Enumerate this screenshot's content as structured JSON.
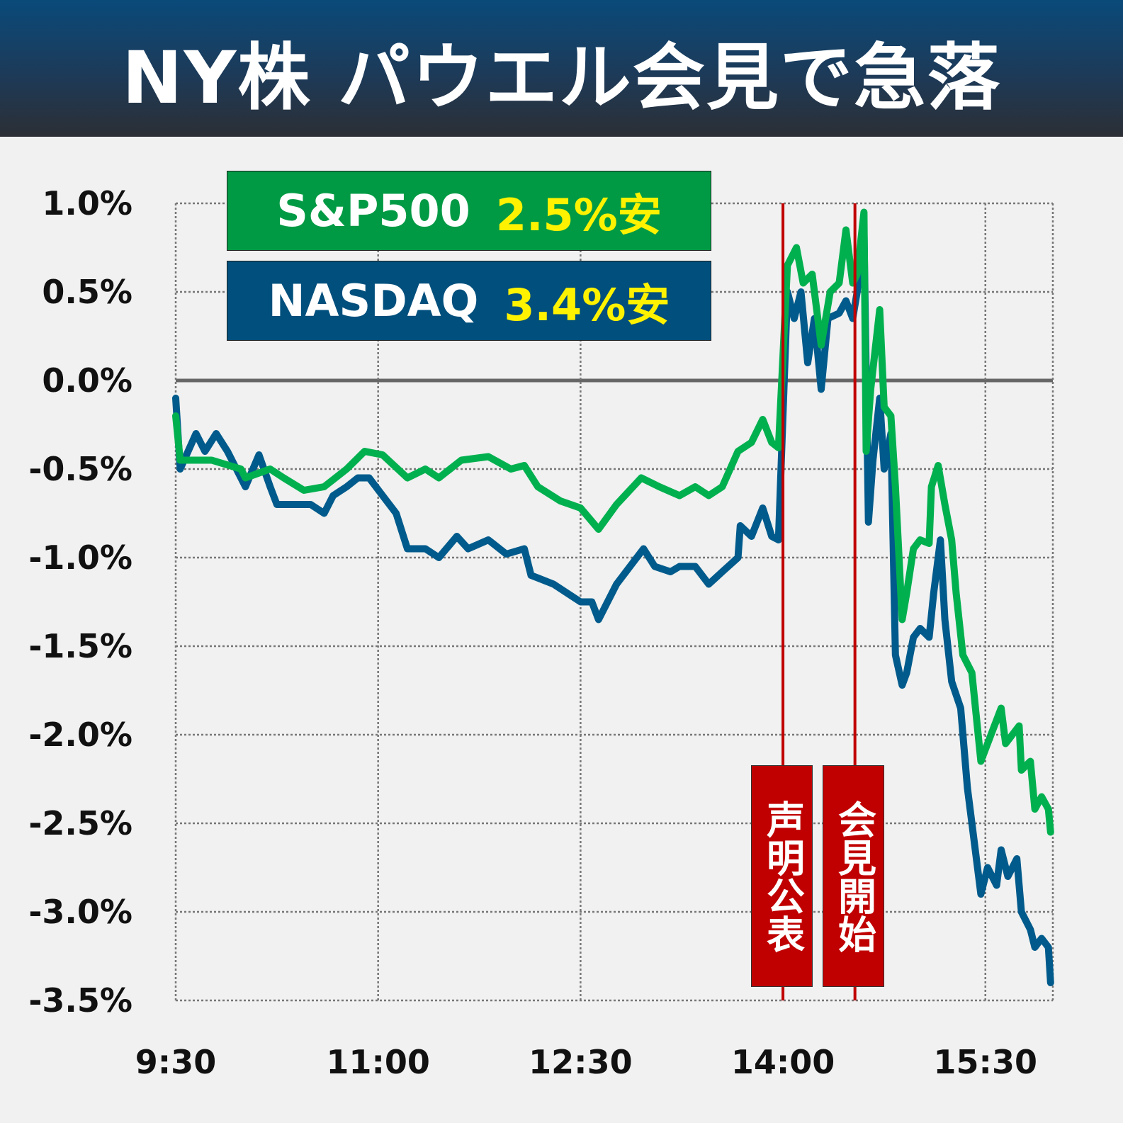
{
  "header": {
    "title": "NY株 パウエル会見で急落"
  },
  "legend": [
    {
      "name": "S&P500",
      "change": "2.5%安",
      "color": "#009a44"
    },
    {
      "name": "NASDAQ",
      "change": "3.4%安",
      "color": "#004f7c"
    }
  ],
  "events": [
    {
      "label": "声明公表",
      "minute": 270
    },
    {
      "label": "会見開始",
      "minute": 302
    }
  ],
  "chart_data": {
    "type": "line",
    "title": "NY株 パウエル会見で急落",
    "xlabel": "",
    "ylabel": "",
    "x_unit": "minutes since 9:30",
    "xlim": [
      0,
      390
    ],
    "ylim": [
      -3.5,
      1.0
    ],
    "grid": true,
    "x_ticks": [
      {
        "minute": 0,
        "label": "9:30"
      },
      {
        "minute": 90,
        "label": "11:00"
      },
      {
        "minute": 180,
        "label": "12:30"
      },
      {
        "minute": 270,
        "label": "14:00"
      },
      {
        "minute": 360,
        "label": "15:30"
      }
    ],
    "y_ticks": [
      {
        "value": 1.0,
        "label": "1.0%"
      },
      {
        "value": 0.5,
        "label": "0.5%"
      },
      {
        "value": 0.0,
        "label": "0.0%"
      },
      {
        "value": -0.5,
        "label": "-0.5%"
      },
      {
        "value": -1.0,
        "label": "-1.0%"
      },
      {
        "value": -1.5,
        "label": "-1.5%"
      },
      {
        "value": -2.0,
        "label": "-2.0%"
      },
      {
        "value": -2.5,
        "label": "-2.5%"
      },
      {
        "value": -3.0,
        "label": "-3.0%"
      },
      {
        "value": -3.5,
        "label": "-3.5%"
      }
    ],
    "series": [
      {
        "name": "S&P500",
        "color": "#00b04f",
        "x": [
          0,
          2,
          16,
          29,
          31,
          42,
          48,
          57,
          66,
          76,
          84,
          92,
          103,
          111,
          117,
          127,
          139,
          149,
          155,
          161,
          171,
          180,
          188,
          196,
          207,
          215,
          224,
          231,
          237,
          243,
          250,
          256,
          261,
          265,
          268,
          272,
          276,
          279,
          283,
          287,
          291,
          295,
          298,
          301,
          303,
          306,
          307,
          309,
          313,
          315,
          318,
          320,
          323,
          325,
          328,
          331,
          335,
          336,
          339,
          342,
          345,
          347,
          350,
          354,
          358,
          361,
          367,
          369,
          375,
          376,
          380,
          382,
          385,
          388,
          389
        ],
        "y": [
          -0.2,
          -0.45,
          -0.45,
          -0.5,
          -0.55,
          -0.5,
          -0.55,
          -0.62,
          -0.6,
          -0.5,
          -0.4,
          -0.42,
          -0.55,
          -0.5,
          -0.55,
          -0.45,
          -0.43,
          -0.5,
          -0.48,
          -0.6,
          -0.68,
          -0.72,
          -0.84,
          -0.7,
          -0.55,
          -0.6,
          -0.65,
          -0.6,
          -0.65,
          -0.6,
          -0.4,
          -0.35,
          -0.22,
          -0.35,
          -0.38,
          0.65,
          0.75,
          0.55,
          0.6,
          0.2,
          0.5,
          0.55,
          0.85,
          0.55,
          0.6,
          0.95,
          -0.4,
          -0.05,
          0.4,
          -0.15,
          -0.2,
          -0.6,
          -1.35,
          -1.2,
          -0.95,
          -0.9,
          -0.92,
          -0.6,
          -0.48,
          -0.7,
          -0.9,
          -1.2,
          -1.55,
          -1.65,
          -2.15,
          -2.05,
          -1.85,
          -2.05,
          -1.95,
          -2.2,
          -2.15,
          -2.42,
          -2.35,
          -2.42,
          -2.55
        ]
      },
      {
        "name": "NASDAQ",
        "color": "#005a8c",
        "x": [
          0,
          2,
          9,
          13,
          18,
          23,
          27,
          31,
          37,
          42,
          45,
          54,
          60,
          66,
          70,
          76,
          81,
          86,
          92,
          98,
          103,
          111,
          117,
          125,
          130,
          139,
          147,
          155,
          158,
          168,
          174,
          180,
          185,
          188,
          196,
          202,
          208,
          213,
          220,
          224,
          231,
          237,
          243,
          250,
          251,
          256,
          261,
          265,
          268,
          272,
          275,
          278,
          281,
          284,
          287,
          290,
          295,
          298,
          301,
          303,
          306,
          308,
          310,
          313,
          315,
          318,
          320,
          323,
          325,
          328,
          331,
          335,
          337,
          340,
          342,
          345,
          349,
          352,
          355,
          358,
          361,
          365,
          367,
          370,
          374,
          376,
          380,
          382,
          385,
          388,
          389
        ],
        "y": [
          -0.1,
          -0.5,
          -0.3,
          -0.4,
          -0.3,
          -0.4,
          -0.5,
          -0.6,
          -0.42,
          -0.6,
          -0.7,
          -0.7,
          -0.7,
          -0.75,
          -0.65,
          -0.6,
          -0.55,
          -0.55,
          -0.65,
          -0.75,
          -0.95,
          -0.95,
          -1.0,
          -0.88,
          -0.95,
          -0.9,
          -0.98,
          -0.95,
          -1.1,
          -1.15,
          -1.2,
          -1.25,
          -1.25,
          -1.35,
          -1.15,
          -1.05,
          -0.95,
          -1.05,
          -1.08,
          -1.05,
          -1.05,
          -1.15,
          -1.08,
          -1.0,
          -0.82,
          -0.88,
          -0.72,
          -0.88,
          -0.9,
          0.5,
          0.35,
          0.5,
          0.1,
          0.35,
          -0.05,
          0.35,
          0.38,
          0.45,
          0.35,
          0.5,
          0.85,
          -0.8,
          -0.45,
          -0.1,
          -0.5,
          -0.3,
          -1.55,
          -1.72,
          -1.65,
          -1.45,
          -1.4,
          -1.45,
          -1.2,
          -0.9,
          -1.35,
          -1.7,
          -1.85,
          -2.3,
          -2.6,
          -2.9,
          -2.75,
          -2.85,
          -2.65,
          -2.8,
          -2.7,
          -3.0,
          -3.1,
          -3.2,
          -3.15,
          -3.2,
          -3.4
        ]
      }
    ]
  }
}
